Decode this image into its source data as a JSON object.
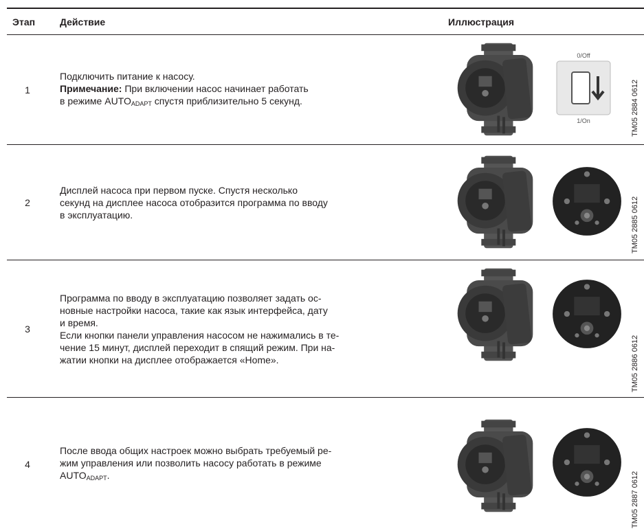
{
  "table": {
    "headers": [
      "Этап",
      "Действие",
      "Иллюстрация"
    ],
    "rows": [
      {
        "step": "1",
        "text": [
          "Подключить питание к насосу.",
          "Примечание:",
          "При включении насос начинает работать",
          "в режиме AUTO",
          "ADAPT",
          "спустя приблизительно 5 секунд."
        ],
        "switch_labels": [
          "0/Off",
          "1/On"
        ],
        "code": "TM05 2884 0612"
      },
      {
        "step": "2",
        "text": [
          "Дисплей насоса при первом пуске. Спустя несколько",
          "секунд на дисплее насоса отобразится программа по вводу",
          "в эксплуатацию."
        ],
        "code": "TM05 2885 0612"
      },
      {
        "step": "3",
        "text": [
          "Программа по вводу в эксплуатацию позволяет задать ос-",
          "новные настройки насоса, такие как язык интерфейса, дату",
          "и время.",
          "Если кнопки панели управления насосом не нажимались в те-",
          "чение 15 минут, дисплей переходит в спящий режим. При на-",
          "жатии кнопки на дисплее отображается «Home»."
        ],
        "code": "TM05 2886 0612"
      },
      {
        "step": "4",
        "text": [
          "После ввода общих настроек можно выбрать требуемый ре-",
          "жим управления или позволить насосу работать в режиме",
          "AUTO",
          "ADAPT",
          "."
        ],
        "code": "TM05 2887 0612"
      }
    ]
  }
}
